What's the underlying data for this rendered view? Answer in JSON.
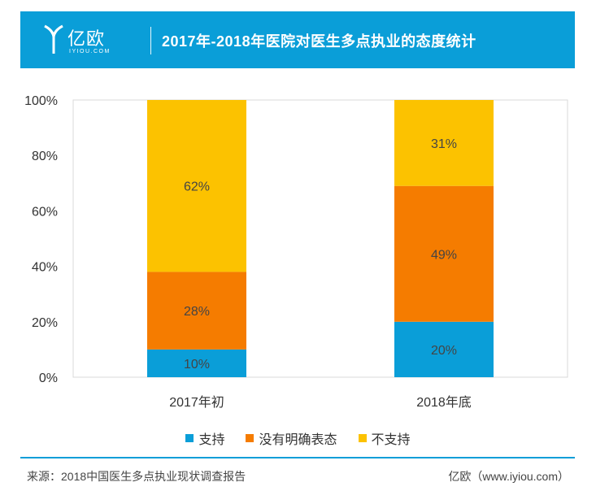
{
  "header": {
    "logo_text": "亿欧",
    "logo_sub": "IYIOU.COM",
    "title": "2017年-2018年医院对医生多点执业的态度统计"
  },
  "colors": {
    "header_bg": "#0a9ed8",
    "support": "#0a9ed8",
    "neutral": "#f57c00",
    "oppose": "#fcc200"
  },
  "chart_data": {
    "type": "bar",
    "stacked": true,
    "categories": [
      "2017年初",
      "2018年底"
    ],
    "series": [
      {
        "name": "支持",
        "values": [
          10,
          20
        ],
        "labels": [
          "10%",
          "20%"
        ],
        "color": "#0a9ed8"
      },
      {
        "name": "没有明确表态",
        "values": [
          28,
          49
        ],
        "labels": [
          "28%",
          "49%"
        ],
        "color": "#f57c00"
      },
      {
        "name": "不支持",
        "values": [
          62,
          31
        ],
        "labels": [
          "62%",
          "31%"
        ],
        "color": "#fcc200"
      }
    ],
    "ylim": [
      0,
      100
    ],
    "yticks": [
      "0%",
      "20%",
      "40%",
      "60%",
      "80%",
      "100%"
    ],
    "grid": false,
    "legend_position": "bottom"
  },
  "footer": {
    "source": "来源：2018中国医生多点执业现状调查报告",
    "brand": "亿欧（www.iyiou.com）"
  }
}
